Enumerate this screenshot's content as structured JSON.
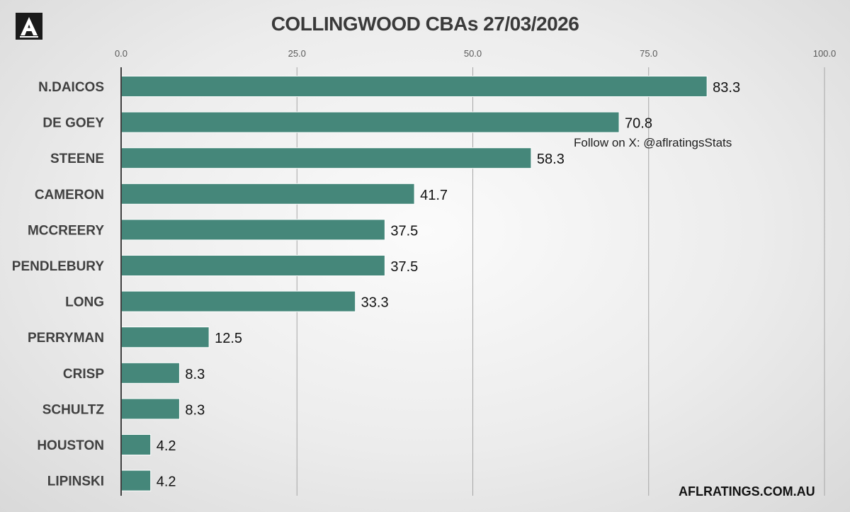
{
  "chart_data": {
    "type": "bar",
    "orientation": "horizontal",
    "title": "COLLINGWOOD CBAs 27/03/2026",
    "categories": [
      "N.DAICOS",
      "DE GOEY",
      "STEENE",
      "CAMERON",
      "MCCREERY",
      "PENDLEBURY",
      "LONG",
      "PERRYMAN",
      "CRISP",
      "SCHULTZ",
      "HOUSTON",
      "LIPINSKI"
    ],
    "values": [
      83.3,
      70.8,
      58.3,
      41.7,
      37.5,
      37.5,
      33.3,
      12.5,
      8.3,
      8.3,
      4.2,
      4.2
    ],
    "value_labels": [
      "83.3",
      "70.8",
      "58.3",
      "41.7",
      "37.5",
      "37.5",
      "33.3",
      "12.5",
      "8.3",
      "8.3",
      "4.2",
      "4.2"
    ],
    "xlim": [
      0,
      100
    ],
    "x_ticks": [
      0,
      25,
      50,
      75,
      100
    ],
    "x_tick_labels": [
      "0.0",
      "25.0",
      "50.0",
      "75.0",
      "100.0"
    ],
    "x_axis_position": "top",
    "grid": true,
    "legend": "none",
    "bar_color": "#45877a",
    "xlabel": "",
    "ylabel": ""
  },
  "annotations": {
    "credit": "Follow on X: @aflratingsStats",
    "footer": "AFLRATINGS.COM.AU"
  },
  "logo": {
    "letter": "A"
  }
}
